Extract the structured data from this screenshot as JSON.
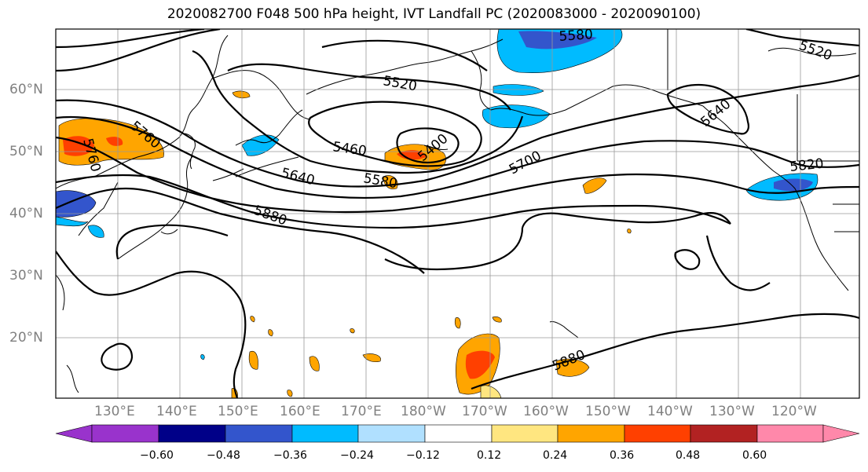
{
  "title": "2020082700 F048 500 hPa height, IVT Landfall PC (2020083000 - 2020090100)",
  "lon_labels": [
    "130°E",
    "140°E",
    "150°E",
    "160°E",
    "170°E",
    "180°W",
    "170°W",
    "160°W",
    "150°W",
    "140°W",
    "130°W",
    "120°W"
  ],
  "lat_labels": [
    "60°N",
    "50°N",
    "40°N",
    "30°N",
    "20°N"
  ],
  "contour_labels": [
    "5580",
    "5520",
    "5520",
    "5760",
    "5760",
    "5460",
    "5400",
    "5640",
    "5580",
    "5700",
    "5880",
    "5880",
    "5820",
    "5640"
  ],
  "colorbar": {
    "tick_labels": [
      "−0.60",
      "−0.48",
      "−0.36",
      "−0.24",
      "−0.12",
      "0.12",
      "0.24",
      "0.36",
      "0.48",
      "0.60"
    ],
    "colors": [
      "#9933cc",
      "#000088",
      "#3355cc",
      "#00bbff",
      "#b0e0ff",
      "#ffffff",
      "#ffe680",
      "#ffa500",
      "#ff4000",
      "#b22222",
      "#ff88aa"
    ]
  },
  "fill_colors": {
    "neg_light": "#b0e0ff",
    "neg_mid": "#00bbff",
    "neg_strong": "#3355cc",
    "pos_light": "#ffe680",
    "pos_mid": "#ffa500",
    "pos_strong": "#ff4000"
  }
}
